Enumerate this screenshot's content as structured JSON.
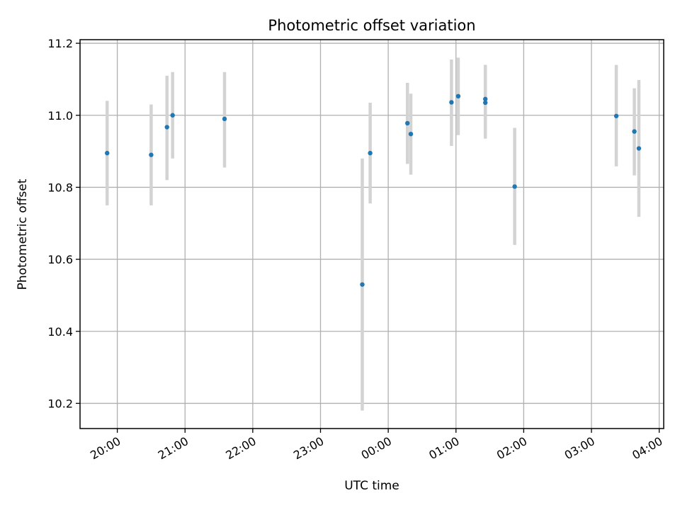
{
  "chart_data": {
    "type": "scatter",
    "title": "Photometric offset variation",
    "xlabel": "UTC time",
    "ylabel": "Photometric offset",
    "x_format": "HH:MM",
    "xlim": [
      "19:27",
      "04:04"
    ],
    "ylim": [
      10.13,
      11.21
    ],
    "x_ticks": [
      "20:00",
      "21:00",
      "22:00",
      "23:00",
      "00:00",
      "01:00",
      "02:00",
      "03:00",
      "04:00"
    ],
    "y_ticks": [
      10.2,
      10.4,
      10.6,
      10.8,
      11.0,
      11.2
    ],
    "grid": true,
    "point_color": "#1f77b4",
    "errorbar_color": "#d3d3d3",
    "points": [
      {
        "x": "19:51",
        "y": 10.895,
        "low": 10.75,
        "high": 11.04
      },
      {
        "x": "20:30",
        "y": 10.89,
        "low": 10.75,
        "high": 11.03
      },
      {
        "x": "20:44",
        "y": 10.967,
        "low": 10.82,
        "high": 11.11
      },
      {
        "x": "20:49",
        "y": 11.0,
        "low": 10.88,
        "high": 11.12
      },
      {
        "x": "21:35",
        "y": 10.99,
        "low": 10.855,
        "high": 11.12
      },
      {
        "x": "23:37",
        "y": 10.53,
        "low": 10.18,
        "high": 10.88
      },
      {
        "x": "23:44",
        "y": 10.895,
        "low": 10.755,
        "high": 11.035
      },
      {
        "x": "00:17",
        "y": 10.978,
        "low": 10.865,
        "high": 11.09
      },
      {
        "x": "00:20",
        "y": 10.948,
        "low": 10.835,
        "high": 11.06
      },
      {
        "x": "00:56",
        "y": 11.036,
        "low": 10.915,
        "high": 11.155
      },
      {
        "x": "01:02",
        "y": 11.053,
        "low": 10.945,
        "high": 11.16
      },
      {
        "x": "01:26",
        "y": 11.045,
        "low": 10.945,
        "high": 11.14
      },
      {
        "x": "01:26",
        "y": 11.035,
        "low": 10.935,
        "high": 11.14
      },
      {
        "x": "01:52",
        "y": 10.802,
        "low": 10.64,
        "high": 10.965
      },
      {
        "x": "03:22",
        "y": 10.998,
        "low": 10.858,
        "high": 11.14
      },
      {
        "x": "03:38",
        "y": 10.955,
        "low": 10.833,
        "high": 11.075
      },
      {
        "x": "03:42",
        "y": 10.908,
        "low": 10.718,
        "high": 11.098
      }
    ]
  }
}
